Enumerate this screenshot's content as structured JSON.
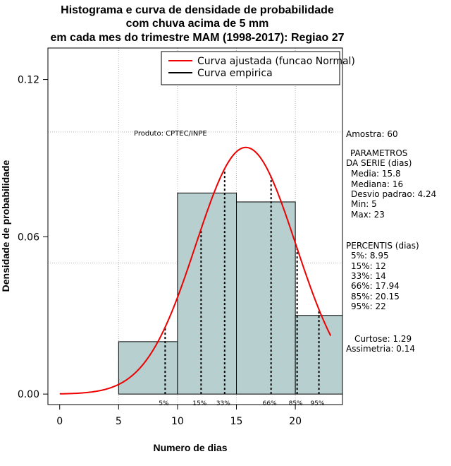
{
  "titles": {
    "line1": "Histograma e curva de densidade de probabilidade",
    "line2": "com chuva acima de 5 mm",
    "line3": "em cada mes do trimestre MAM (1998-2017): Regiao 27"
  },
  "product_label": "Produto: CPTEC/INPE",
  "side_panel": {
    "sample": "Amostra: 60",
    "params_title1": "PARAMETROS",
    "params_title2": "DA SERIE (dias)",
    "media": "Media: 15.8",
    "mediana": "Mediana: 16",
    "desvio": "Desvio padrao: 4.24",
    "min": "Min: 5",
    "max": "Max: 23",
    "perc_title": "PERCENTIS (dias)",
    "p5": "5%: 8.95",
    "p15": "15%: 12",
    "p33": "33%: 14",
    "p66": "66%: 17.94",
    "p85": "85%: 20.15",
    "p95": "95%: 22",
    "curtose": "Curtose: 1.29",
    "assimetria": "Assimetria: 0.14"
  },
  "colors": {
    "bar_fill": "#b7cfcf",
    "curve": "#ee0000",
    "grid": "#b0b0b0"
  },
  "chart_data": {
    "type": "bar",
    "xlabel": "Numero de dias",
    "ylabel": "Densidade de probabilidade",
    "xlim": [
      -1,
      24
    ],
    "ylim": [
      -0.004,
      0.132
    ],
    "xticks": [
      0,
      5,
      10,
      15,
      20
    ],
    "xtick_labels": [
      "0",
      "5",
      "10",
      "15",
      "20"
    ],
    "yticks": [
      0.0,
      0.06,
      0.12
    ],
    "ytick_labels": [
      "0.00",
      "0.06",
      "0.12"
    ],
    "grid_x": [
      5,
      10,
      15,
      20
    ],
    "grid_y": [
      0.05,
      0.1
    ],
    "histogram": {
      "bins": [
        [
          5,
          10
        ],
        [
          10,
          15
        ],
        [
          15,
          20
        ],
        [
          20,
          24
        ]
      ],
      "density": [
        0.02,
        0.0767,
        0.0733,
        0.03
      ]
    },
    "normal_curve": {
      "mean": 15.8,
      "sd": 4.24,
      "x_range": [
        0,
        23
      ]
    },
    "percentiles": [
      {
        "label": "5%",
        "value": 8.95
      },
      {
        "label": "15%",
        "value": 12
      },
      {
        "label": "33%",
        "value": 14
      },
      {
        "label": "66%",
        "value": 17.94
      },
      {
        "label": "85%",
        "value": 20.15
      },
      {
        "label": "95%",
        "value": 22
      }
    ],
    "legend": {
      "position": "top-right",
      "entries": [
        {
          "label": "Curva ajustada (funcao Normal)",
          "color": "#ee0000"
        },
        {
          "label": "Curva empirica",
          "color": "#000000"
        }
      ]
    }
  }
}
